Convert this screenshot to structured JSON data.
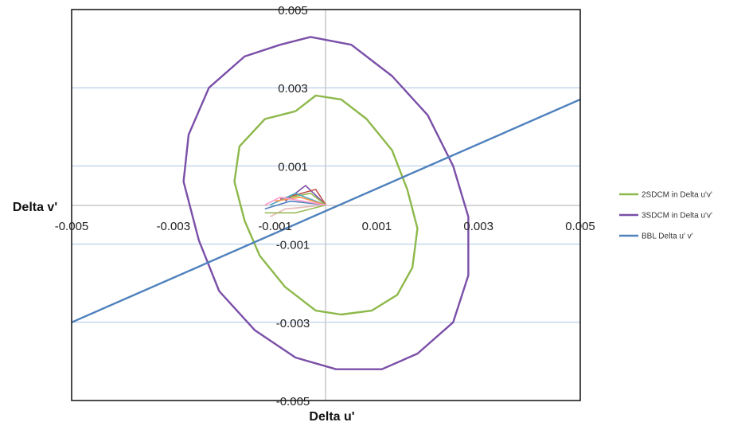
{
  "chart_data": {
    "type": "line",
    "xlabel": "Delta u'",
    "ylabel": "Delta v'",
    "xlim": [
      -0.005,
      0.005
    ],
    "ylim": [
      -0.005,
      0.005
    ],
    "x_ticks": [
      "-0.005",
      "-0.003",
      "-0.001",
      "0.001",
      "0.003",
      "0.005"
    ],
    "y_ticks": [
      "0.005",
      "0.003",
      "0.001",
      "-0.001",
      "-0.003",
      "-0.005"
    ],
    "grid": "horizontal",
    "legend_position": "right",
    "series": [
      {
        "name": "2SDCM in Delta u'v'",
        "color": "#8db84a",
        "points": [
          [
            -0.0006,
            0.0024
          ],
          [
            -0.0002,
            0.0028
          ],
          [
            0.0003,
            0.0027
          ],
          [
            0.0008,
            0.0022
          ],
          [
            0.0013,
            0.0014
          ],
          [
            0.0016,
            0.0004
          ],
          [
            0.0018,
            -0.0006
          ],
          [
            0.0017,
            -0.0016
          ],
          [
            0.0014,
            -0.0023
          ],
          [
            0.0009,
            -0.0027
          ],
          [
            0.0003,
            -0.0028
          ],
          [
            -0.0002,
            -0.0027
          ],
          [
            -0.0008,
            -0.0021
          ],
          [
            -0.0013,
            -0.0013
          ],
          [
            -0.0016,
            -0.0004
          ],
          [
            -0.0018,
            0.0006
          ],
          [
            -0.0017,
            0.0015
          ],
          [
            -0.0012,
            0.0022
          ],
          [
            -0.0006,
            0.0024
          ]
        ]
      },
      {
        "name": "3SDCM in Delta u'v'",
        "color": "#7a4fa8",
        "points": [
          [
            -0.0009,
            0.0041
          ],
          [
            -0.0003,
            0.0043
          ],
          [
            0.0005,
            0.0041
          ],
          [
            0.0013,
            0.0033
          ],
          [
            0.002,
            0.0023
          ],
          [
            0.0025,
            0.001
          ],
          [
            0.0028,
            -0.0003
          ],
          [
            0.0028,
            -0.0018
          ],
          [
            0.0025,
            -0.003
          ],
          [
            0.0018,
            -0.0038
          ],
          [
            0.0011,
            -0.0042
          ],
          [
            0.0002,
            -0.0042
          ],
          [
            -0.0006,
            -0.0039
          ],
          [
            -0.0014,
            -0.0032
          ],
          [
            -0.0021,
            -0.0022
          ],
          [
            -0.0025,
            -0.0009
          ],
          [
            -0.0028,
            0.0006
          ],
          [
            -0.0027,
            0.0018
          ],
          [
            -0.0023,
            0.003
          ],
          [
            -0.0016,
            0.0038
          ],
          [
            -0.0009,
            0.0041
          ]
        ]
      },
      {
        "name": "BBL Delta u' v'",
        "color": "#4f81bd",
        "points": [
          [
            -0.005,
            -0.003
          ],
          [
            0.005,
            0.0027
          ]
        ]
      }
    ],
    "cluster_series": [
      {
        "color": "#7a4fa8",
        "points": [
          [
            0,
            0
          ],
          [
            -0.0004,
            0.0005
          ],
          [
            -0.0008,
            0.0001
          ]
        ]
      },
      {
        "color": "#c0504d",
        "points": [
          [
            0,
            0
          ],
          [
            -0.0002,
            0.0004
          ],
          [
            -0.0009,
            0.00015
          ]
        ]
      },
      {
        "color": "#8db84a",
        "points": [
          [
            0,
            0
          ],
          [
            -0.0003,
            0.0003
          ],
          [
            -0.0007,
            0.0002
          ]
        ]
      },
      {
        "color": "#4bacc6",
        "points": [
          [
            0,
            0
          ],
          [
            -0.0006,
            0.0003
          ],
          [
            -0.0011,
            0
          ]
        ]
      },
      {
        "color": "#f79646",
        "points": [
          [
            0,
            0
          ],
          [
            -0.0005,
            0.0002
          ],
          [
            -0.001,
            0.0001
          ]
        ]
      },
      {
        "color": "#4f81bd",
        "points": [
          [
            0,
            0
          ],
          [
            -0.0007,
            0.0001
          ],
          [
            -0.0012,
            -0.0001
          ]
        ]
      },
      {
        "color": "#e6b9b8",
        "points": [
          [
            0,
            0
          ],
          [
            -0.0008,
            -0.0001
          ],
          [
            -0.0011,
            -0.0003
          ]
        ]
      },
      {
        "color": "#9bbb59",
        "points": [
          [
            0,
            0
          ],
          [
            -0.0006,
            -0.0002
          ],
          [
            -0.0012,
            -0.0002
          ]
        ]
      },
      {
        "color": "#ff99cc",
        "points": [
          [
            0,
            0
          ],
          [
            -0.0009,
            0.0002
          ],
          [
            -0.0012,
            0
          ]
        ]
      }
    ]
  }
}
